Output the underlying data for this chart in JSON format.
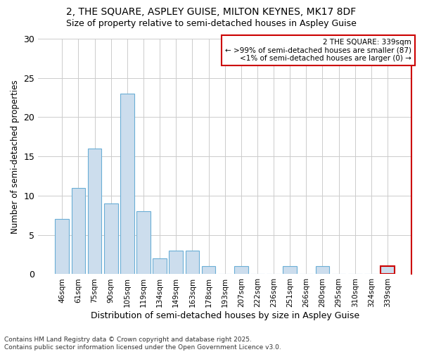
{
  "title_line1": "2, THE SQUARE, ASPLEY GUISE, MILTON KEYNES, MK17 8DF",
  "title_line2": "Size of property relative to semi-detached houses in Aspley Guise",
  "xlabel": "Distribution of semi-detached houses by size in Aspley Guise",
  "ylabel": "Number of semi-detached properties",
  "categories": [
    "46sqm",
    "61sqm",
    "75sqm",
    "90sqm",
    "105sqm",
    "119sqm",
    "134sqm",
    "149sqm",
    "163sqm",
    "178sqm",
    "193sqm",
    "207sqm",
    "222sqm",
    "236sqm",
    "251sqm",
    "266sqm",
    "280sqm",
    "295sqm",
    "310sqm",
    "324sqm",
    "339sqm"
  ],
  "values": [
    7,
    11,
    16,
    9,
    23,
    8,
    2,
    3,
    3,
    1,
    0,
    1,
    0,
    0,
    1,
    0,
    1,
    0,
    0,
    0,
    1
  ],
  "bar_color": "#ccdded",
  "bar_edge_color": "#6aaed6",
  "highlight_bar_index": 20,
  "highlight_bar_edge_color": "#cc0000",
  "legend_title": "2 THE SQUARE: 339sqm",
  "legend_line1": "← >99% of semi-detached houses are smaller (87)",
  "legend_line2": "<1% of semi-detached houses are larger (0) →",
  "legend_box_edge_color": "#cc0000",
  "right_spine_color": "#cc0000",
  "ylim": [
    0,
    30
  ],
  "yticks": [
    0,
    5,
    10,
    15,
    20,
    25,
    30
  ],
  "footnote": "Contains HM Land Registry data © Crown copyright and database right 2025.\nContains public sector information licensed under the Open Government Licence v3.0.",
  "background_color": "#ffffff",
  "grid_color": "#cccccc"
}
